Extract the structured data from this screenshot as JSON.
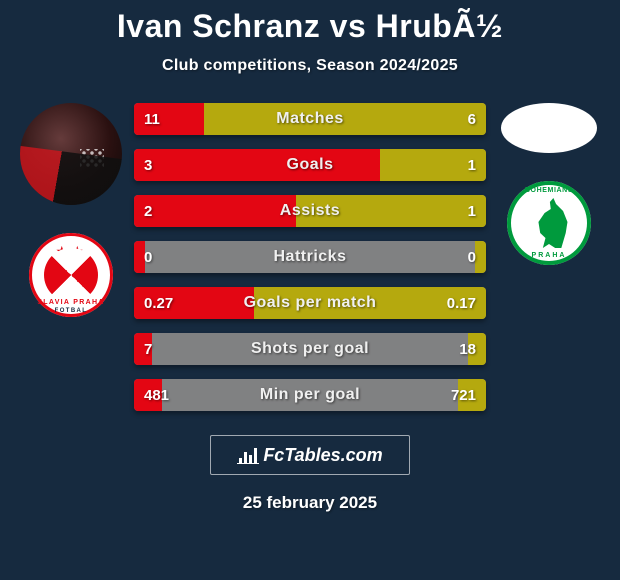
{
  "title": "Ivan Schranz vs HrubÃ½",
  "subtitle": "Club competitions, Season 2024/2025",
  "colors": {
    "background": "#162a3f",
    "bar_track": "#808182",
    "bar_left": "#e30613",
    "bar_right": "#b5a90e",
    "text": "#ffffff"
  },
  "left_player": {
    "avatar_desc": "player-photo-red-black-kit",
    "club_name": "SK Slavia Praha",
    "club_badge_colors": {
      "primary": "#e30613",
      "secondary": "#ffffff"
    },
    "club_badge_text1": "SLAVIA PRAHA",
    "club_badge_text2": "FOTBAL",
    "club_badge_stars": "★★"
  },
  "right_player": {
    "avatar_desc": "blank-oval-placeholder",
    "club_name": "Bohemians Praha",
    "club_badge_colors": {
      "primary": "#009a3d",
      "secondary": "#ffffff"
    },
    "club_badge_text_top": "BOHEMIANS",
    "club_badge_text_bottom": "PRAHA"
  },
  "stats": [
    {
      "label": "Matches",
      "left_val": "11",
      "right_val": "6",
      "left_pct": 20,
      "right_pct": 80
    },
    {
      "label": "Goals",
      "left_val": "3",
      "right_val": "1",
      "left_pct": 70,
      "right_pct": 30
    },
    {
      "label": "Assists",
      "left_val": "2",
      "right_val": "1",
      "left_pct": 46,
      "right_pct": 54
    },
    {
      "label": "Hattricks",
      "left_val": "0",
      "right_val": "0",
      "left_pct": 3,
      "right_pct": 3
    },
    {
      "label": "Goals per match",
      "left_val": "0.27",
      "right_val": "0.17",
      "left_pct": 34,
      "right_pct": 66
    },
    {
      "label": "Shots per goal",
      "left_val": "7",
      "right_val": "18",
      "left_pct": 5,
      "right_pct": 5
    },
    {
      "label": "Min per goal",
      "left_val": "481",
      "right_val": "721",
      "left_pct": 8,
      "right_pct": 8
    }
  ],
  "footer_brand": "FcTables.com",
  "footer_date": "25 february 2025"
}
